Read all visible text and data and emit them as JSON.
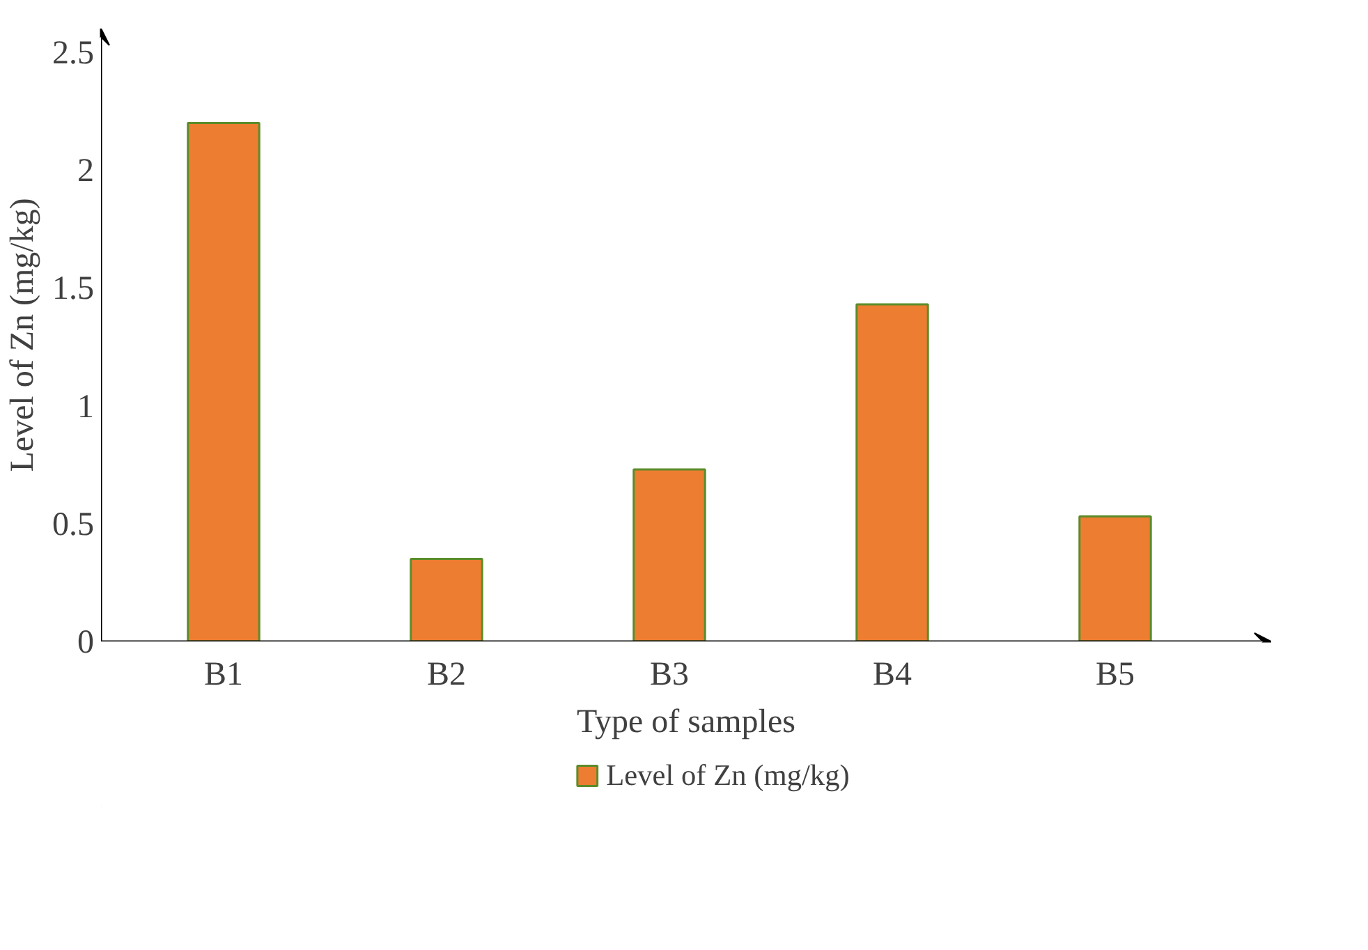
{
  "chart_data": {
    "type": "bar",
    "xlabel": "Type of samples",
    "ylabel": "Level of Zn (mg/kg)",
    "categories": [
      "B1",
      "B2",
      "B3",
      "B4",
      "B5"
    ],
    "series": [
      {
        "name": "Level of Zn (mg/kg)",
        "color": "#ed7d31",
        "values": [
          2.2,
          0.35,
          0.73,
          1.43,
          0.53
        ]
      }
    ],
    "ylim": [
      0,
      2.6
    ],
    "yticks": [
      0,
      0.5,
      1,
      1.5,
      2,
      2.5
    ],
    "grid": false,
    "legend": "bottom"
  }
}
